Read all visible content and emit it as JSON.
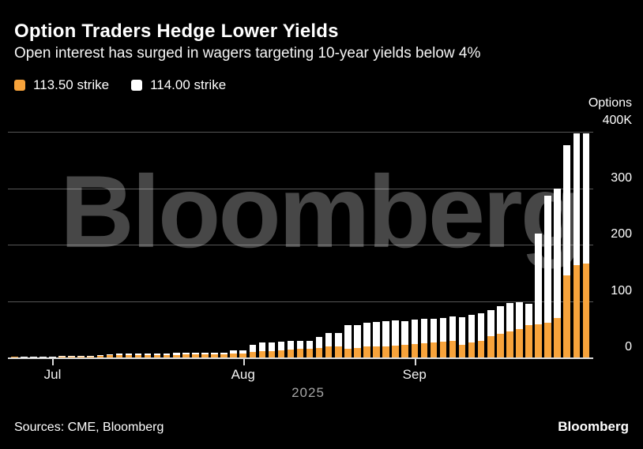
{
  "header": {
    "title": "Option Traders Hedge Lower Yields",
    "subtitle": "Open interest has surged in wagers targeting 10-year yields below 4%"
  },
  "legend": [
    {
      "label": "113.50 strike",
      "color": "#F7A33B"
    },
    {
      "label": "114.00 strike",
      "color": "#FFFFFF"
    }
  ],
  "watermark": "Bloomberg",
  "footer": {
    "sources": "Sources: CME, Bloomberg",
    "brand": "Bloomberg"
  },
  "chart_data": {
    "type": "bar",
    "stacked": true,
    "title": "Option Traders Hedge Lower Yields",
    "subtitle": "Open interest has surged in wagers targeting 10-year yields below 4%",
    "unit": "thousands of option contracts (K)",
    "ylabel": "Options",
    "ylim": [
      0,
      400
    ],
    "yticks": [
      400,
      300,
      200,
      100,
      0
    ],
    "ytick_labels": [
      "400K",
      "300",
      "200",
      "100",
      "0"
    ],
    "grid": "horizontal",
    "legend_position": "top-left",
    "xlabel": "2025",
    "x_month_ticks": [
      {
        "label": "Jul",
        "bar_index": 4
      },
      {
        "label": "Aug",
        "bar_index": 24
      },
      {
        "label": "Sep",
        "bar_index": 42
      }
    ],
    "x_description": "daily bars, late June 2025 through early October 2025",
    "series": [
      {
        "name": "113.50 strike",
        "color": "#F7A33B",
        "values": [
          1.2,
          1.4,
          1.5,
          1.6,
          1.6,
          1.7,
          1.7,
          1.8,
          1.9,
          3.5,
          4,
          4.5,
          4.5,
          4.5,
          4.5,
          4.6,
          4.6,
          4.8,
          5,
          5,
          5,
          5.2,
          5.4,
          6.5,
          7,
          9.5,
          10.5,
          11.5,
          13,
          14,
          15,
          16,
          17,
          20,
          20,
          16,
          17,
          19,
          20,
          20,
          21,
          23,
          24,
          25,
          27,
          28,
          29,
          22,
          26,
          29,
          38,
          42,
          46,
          50,
          57,
          59,
          62,
          70,
          145,
          163,
          166
        ]
      },
      {
        "name": "114.00 strike",
        "color": "#FFFFFF",
        "values": [
          0,
          0.2,
          0.3,
          0.3,
          0.4,
          0.4,
          0.4,
          0.5,
          0.5,
          1.0,
          1.5,
          2.0,
          2.2,
          2.5,
          2.5,
          2.6,
          2.8,
          3.0,
          3.5,
          3.5,
          3.5,
          3.4,
          3.6,
          5.5,
          5.0,
          12.5,
          15.5,
          14.5,
          15,
          15,
          14,
          13,
          19,
          23,
          24,
          42,
          40,
          42,
          43,
          45,
          45,
          42,
          43,
          43,
          41,
          42,
          44,
          50,
          49,
          50,
          46,
          49,
          50,
          48,
          38,
          161,
          225,
          230,
          231,
          234,
          231
        ]
      }
    ]
  }
}
